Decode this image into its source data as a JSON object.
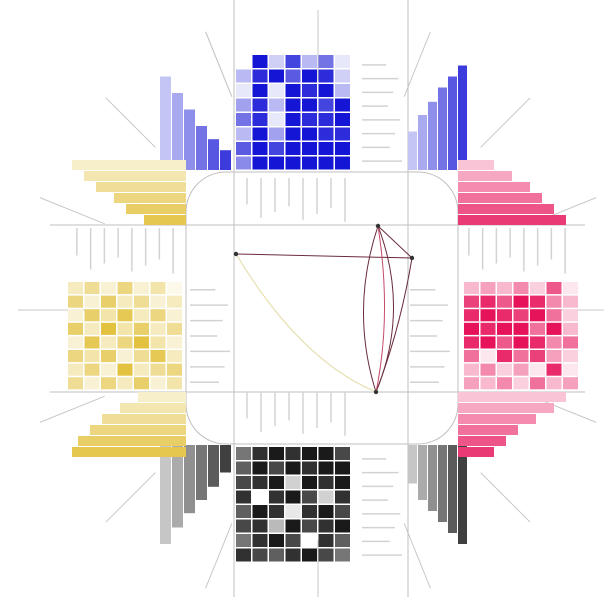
{
  "colors": {
    "top": "#1515d6",
    "right": "#e6125a",
    "bottom": "#1a1a1a",
    "left": "#e0bb2a",
    "center_line_yellow": "#e6dfb0",
    "center_line_dark": "#6a2a3a",
    "frame": "#bfbfbf",
    "spoke": "#c8c8c8"
  },
  "matrices": {
    "top": [
      [
        0,
        1,
        0.2,
        0.8,
        0.3,
        0.6,
        0.1
      ],
      [
        0.3,
        0.9,
        1,
        0.7,
        1,
        0.9,
        0.2
      ],
      [
        0.1,
        1,
        0.1,
        1,
        0.9,
        1,
        0.3
      ],
      [
        0.4,
        0.9,
        0.3,
        1,
        1,
        0.8,
        1
      ],
      [
        0.6,
        0.9,
        0.1,
        1,
        0.9,
        0.9,
        1
      ],
      [
        0.3,
        1,
        0.4,
        1,
        1,
        0.9,
        0.9
      ],
      [
        0.7,
        1,
        0.8,
        1,
        1,
        1,
        1
      ],
      [
        0.5,
        1,
        1,
        1,
        1,
        1,
        1
      ]
    ],
    "right": [
      [
        0.3,
        0.4,
        0.3,
        0.5,
        0.2,
        0.7,
        0.1
      ],
      [
        0.8,
        0.9,
        0.7,
        1,
        0.9,
        0.5,
        0.3
      ],
      [
        0.9,
        1,
        0.9,
        0.8,
        1,
        0.6,
        0.2
      ],
      [
        1,
        0.9,
        1,
        1,
        0.6,
        1,
        0.3
      ],
      [
        0.9,
        1,
        0.7,
        1,
        0.9,
        0.5,
        0.6
      ],
      [
        0.6,
        0.1,
        0.9,
        0.6,
        0.8,
        0.4,
        0.2
      ],
      [
        0.3,
        0.5,
        0.2,
        0.4,
        0.1,
        0.9,
        0.1
      ],
      [
        0.4,
        0.3,
        0.5,
        0.2,
        0.6,
        0.3,
        0.4
      ]
    ],
    "bottom": [
      [
        0.6,
        0.9,
        1,
        0.9,
        1,
        1,
        0.8
      ],
      [
        0.7,
        1,
        0.8,
        1,
        0.9,
        1,
        1
      ],
      [
        0.8,
        0.9,
        1,
        0.2,
        1,
        0.9,
        1
      ],
      [
        0.9,
        0,
        0.9,
        1,
        0.8,
        0.2,
        0.9
      ],
      [
        0.7,
        1,
        0.9,
        0.1,
        0.9,
        1,
        0.8
      ],
      [
        0.8,
        0.9,
        0.3,
        1,
        0.8,
        0.9,
        1
      ],
      [
        0.6,
        0.9,
        1,
        0.8,
        0,
        0.9,
        0.7
      ],
      [
        0.9,
        0.8,
        0.7,
        0.9,
        1,
        0.8,
        0.6
      ]
    ],
    "left": [
      [
        0.3,
        0.5,
        0.2,
        0.6,
        0.2,
        0.4,
        0.1
      ],
      [
        0.6,
        0.2,
        0.7,
        0.3,
        0.5,
        0.2,
        0.3
      ],
      [
        0.2,
        0.7,
        0.4,
        0.8,
        0.3,
        0.6,
        0.2
      ],
      [
        0.7,
        0.3,
        0.9,
        0.4,
        0.7,
        0.3,
        0.5
      ],
      [
        0.2,
        0.8,
        0.3,
        0.6,
        0.9,
        0.4,
        0.2
      ],
      [
        0.6,
        0.4,
        0.7,
        0.2,
        0.5,
        0.8,
        0.3
      ],
      [
        0.3,
        0.6,
        0.2,
        0.9,
        0.3,
        0.5,
        0.6
      ],
      [
        0.5,
        0.2,
        0.6,
        0.3,
        0.7,
        0.2,
        0.4
      ]
    ]
  },
  "bars": {
    "top_left": [
      0.85,
      0.7,
      0.55,
      0.4,
      0.28,
      0.18
    ],
    "top_right": [
      0.35,
      0.5,
      0.62,
      0.75,
      0.85,
      0.95
    ],
    "right_top": [
      0.3,
      0.45,
      0.6,
      0.7,
      0.8,
      0.9
    ],
    "right_bottom": [
      0.9,
      0.8,
      0.65,
      0.5,
      0.4,
      0.3
    ],
    "bottom_right": [
      0.35,
      0.5,
      0.6,
      0.7,
      0.8,
      0.9
    ],
    "bottom_left": [
      0.9,
      0.75,
      0.62,
      0.5,
      0.38,
      0.25
    ],
    "left_bottom": [
      0.4,
      0.55,
      0.7,
      0.8,
      0.9,
      0.95
    ],
    "left_top": [
      0.95,
      0.85,
      0.75,
      0.6,
      0.5,
      0.35
    ]
  }
}
